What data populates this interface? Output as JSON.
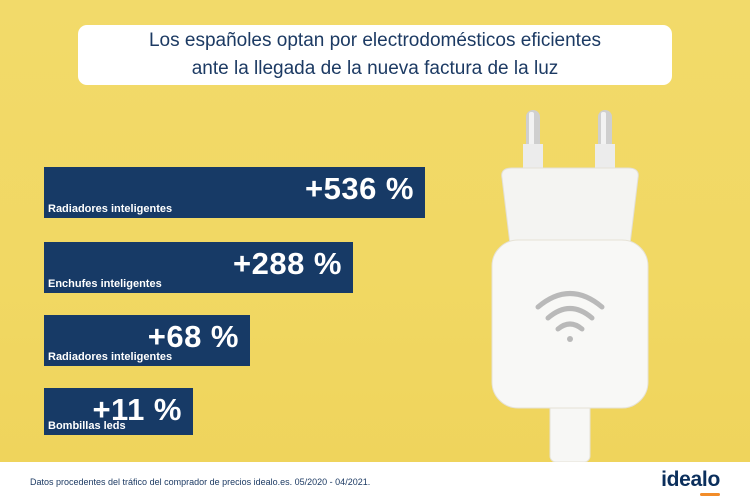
{
  "title": {
    "line1": "Los españoles optan por electrodomésticos eficientes",
    "line2": "ante la llegada de la nueva factura de la luz"
  },
  "chart_data": {
    "type": "bar",
    "orientation": "horizontal",
    "unit": "%",
    "categories": [
      "Radiadores inteligentes",
      "Enchufes inteligentes",
      "Radiadores inteligentes",
      "Bombillas leds"
    ],
    "value_labels": [
      "+536 %",
      "+288 %",
      "+68 %",
      "+11 %"
    ],
    "values": [
      536,
      288,
      68,
      11
    ]
  },
  "footer": {
    "note": "Datos procedentes del tráfico del comprador de precios idealo.es. 05/2020 - 04/2021.",
    "logo": "idealo"
  },
  "colors": {
    "background": "#f2da6a",
    "bar": "#173a66",
    "title_text": "#1c3a63",
    "logo_accent": "#f28c28"
  }
}
